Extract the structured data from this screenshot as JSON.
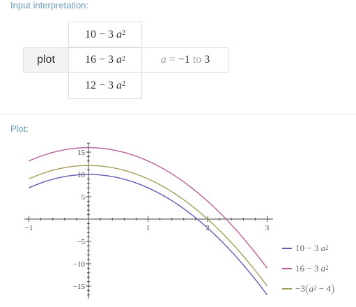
{
  "input_section": {
    "label": "Input interpretation:",
    "plot_word": "plot",
    "functions": [
      {
        "const": "10",
        "minus": "−",
        "coef": "3",
        "var": "a",
        "exp": "2"
      },
      {
        "const": "16",
        "minus": "−",
        "coef": "3",
        "var": "a",
        "exp": "2"
      },
      {
        "const": "12",
        "minus": "−",
        "coef": "3",
        "var": "a",
        "exp": "2"
      }
    ],
    "range": {
      "var": "a",
      "eq": "=",
      "from": "−1",
      "to_word": "to",
      "to": "3"
    }
  },
  "plot_section": {
    "label": "Plot:"
  },
  "chart_data": {
    "type": "line",
    "title": "",
    "xlabel": "",
    "ylabel": "",
    "xlim": [
      -1,
      3
    ],
    "ylim": [
      -17,
      17
    ],
    "x_ticks": [
      -1,
      1,
      2,
      3
    ],
    "x_tick_labels": [
      "−1",
      "1",
      "2",
      "3"
    ],
    "y_ticks": [
      15,
      10,
      5,
      -5,
      -10,
      -15
    ],
    "y_tick_labels": [
      "15",
      "10",
      "5",
      "−5",
      "−10",
      "−15"
    ],
    "grid": false,
    "legend_position": "bottom-right",
    "series": [
      {
        "name": "10 − 3a²",
        "color": "#5e5eb5",
        "x": [
          -1,
          -0.5,
          0,
          0.5,
          1,
          1.5,
          2,
          2.5,
          3
        ],
        "values": [
          7,
          9.25,
          10,
          9.25,
          7,
          3.25,
          -2,
          -8.75,
          -17
        ]
      },
      {
        "name": "16 − 3a²",
        "color": "#b5609a",
        "x": [
          -1,
          -0.5,
          0,
          0.5,
          1,
          1.5,
          2,
          2.5,
          3
        ],
        "values": [
          13,
          15.25,
          16,
          15.25,
          13,
          9.25,
          4,
          -2.75,
          -11
        ]
      },
      {
        "name": "−3(a² − 4)",
        "color": "#a79d5c",
        "x": [
          -1,
          -0.5,
          0,
          0.5,
          1,
          1.5,
          2,
          2.5,
          3
        ],
        "values": [
          9,
          11.25,
          12,
          11.25,
          9,
          5.25,
          0,
          -6.75,
          -15
        ]
      }
    ]
  },
  "legend": [
    {
      "const": "10",
      "minus": "−",
      "coef": "3",
      "var": "a",
      "exp": "2",
      "color": "#5e5eb5"
    },
    {
      "const": "16",
      "minus": "−",
      "coef": "3",
      "var": "a",
      "exp": "2",
      "color": "#b5609a"
    },
    {
      "prefix": "−3",
      "lparen": "(",
      "var": "a",
      "exp": "2",
      "minus": "−",
      "const": "4",
      "rparen": ")",
      "color": "#a79d5c"
    }
  ]
}
